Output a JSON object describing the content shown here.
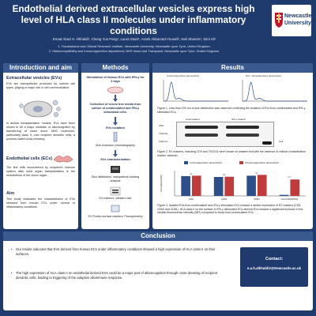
{
  "header": {
    "title": "Endothelial derived extracellular vesicles express high level of HLA class II molecules under inflammatory conditions",
    "authors": "Emad Abed H. Alkhaldi¹, Chong Yun Pang¹, Laura Stam¹, Arash Akbarzad-Yousefi¹, Neil Sheerin¹, Simi Ali¹",
    "affiliation_1": "1. Translational and Clinical Research Institute, Newcastle University, Newcastle upon Tyne, United Kingdom.",
    "affiliation_2": "2. Histocompatibility and Immunogenetics department, NHS blood and Transplant, Newcastle upon Tyne, United Kingdom.",
    "logo_text": "Newcastle University"
  },
  "intro": {
    "title": "Introduction and aim",
    "h_evs": "Extracellular vesicles (EVs)",
    "p_evs": "EVs are nanoparticles produced by various cell types, playing a major role in cell communication.",
    "p_transplant": "In animal transplantation models, EVs have been shown to be a major mediator of allorecognition by transferring of intact donor MHC molecules, particularly class II, onto recipient dendritic cells, a process called cross dressing.",
    "h_ecs": "Endothelial cells (ECs)",
    "p_ecs": "The first cells encountered by recipient's immune system after solid organ transplantation is the endothelium of the donor organ.",
    "h_aim": "Aim",
    "p_aim": "This study evaluated the characteristics of EVs released from human ECs under normal or inflammatory conditions."
  },
  "methods": {
    "title": "Methods",
    "step1": "Stimulation of Human ECs with IFN-γ for 3 days",
    "step2": "Collection of serum free media from culture of unstimulated and IFN-γ stimulated cells.",
    "step3": "EVs isolation",
    "step3_sub": "Size exclusion chromatography",
    "step4": "EVs characterization",
    "step4_a": "Size distribution, nanoparticle tracking analysis",
    "step4_b": "EV markers: Western blot",
    "step4_c": "EV Protein surface markers: Flowcytometry"
  },
  "results": {
    "title": "Results",
    "fig1_title_left": "Unstimulated ECs derived EVs",
    "fig1_title_right": "IFN - Stimulated ECs derived EVs",
    "fig1_caption": "Figure 1. Less than 200 nm of size distribution was observed confirming the isolation of EVs from unstimulated and IFN-γ stimulated ECs.",
    "blot_head_left": "Unstimulated",
    "blot_head_right": "IFN-γ treated",
    "blot_markers": [
      "CD9",
      "TSG101",
      "Calnexin"
    ],
    "blot_right_label": "Cell",
    "fig2_caption": "Figure 2. EV markers, including CD9 and TSG101 were shown on western blot with the absence of cellular contamination marker, calnexin.",
    "fig3_caption": "Figure 3. Isolated EVs from unstimulated and IFN-γ stimulated ECs showed a similar expression of EV markers (CD9, CD63 and CD81). HLA class II on the surface of IFN-γ stimulated ECs derived EVs showed a significant increase in the median fluorescence intensity (MFI) compared to those from unstimulated ECs."
  },
  "chart_data": [
    {
      "type": "bar",
      "categories": [
        "CD9",
        "CD63",
        "CD81",
        "HLA-DR/DP/DQ"
      ],
      "series": [
        {
          "name": "Unstimulated ECs derived EVs",
          "values": [
            0.94,
            0.9,
            0.96,
            0.05
          ],
          "color": "#2b4f8a"
        },
        {
          "name": "IFN-stimulated ECs derived EVs",
          "values": [
            0.96,
            0.91,
            1.0,
            0.78
          ],
          "color": "#c23b3b"
        }
      ],
      "significance": [
        "ns",
        "ns",
        "ns",
        "****"
      ],
      "ylabel": "Normalised MFI",
      "ylim": [
        0,
        1.2
      ]
    },
    {
      "type": "line",
      "title": "Unstimulated ECs derived EVs",
      "xlim": [
        0,
        1000
      ],
      "peak_x": 120
    },
    {
      "type": "line",
      "title": "IFN - Stimulated ECs derived EVs",
      "xlim": [
        0,
        1000
      ],
      "peak_x": 130
    }
  ],
  "conclusion": {
    "title": "Conclusion",
    "bullet_1": "Our results indicated that EVs derived from human ECs under inflammatory conditions showed a high expression of HLA class II on their surfaces.",
    "bullet_2": "The high expression of HLA class II on endothelial derived EVs could be a major part of allorecognition through cross dressing of recipient dendritic cells, leading to triggering of the adaptive alloimmune response.",
    "contact_title": "Contact:",
    "contact_email": "e.a.h.alkhaldi2@Newcastle.ac.uk"
  }
}
